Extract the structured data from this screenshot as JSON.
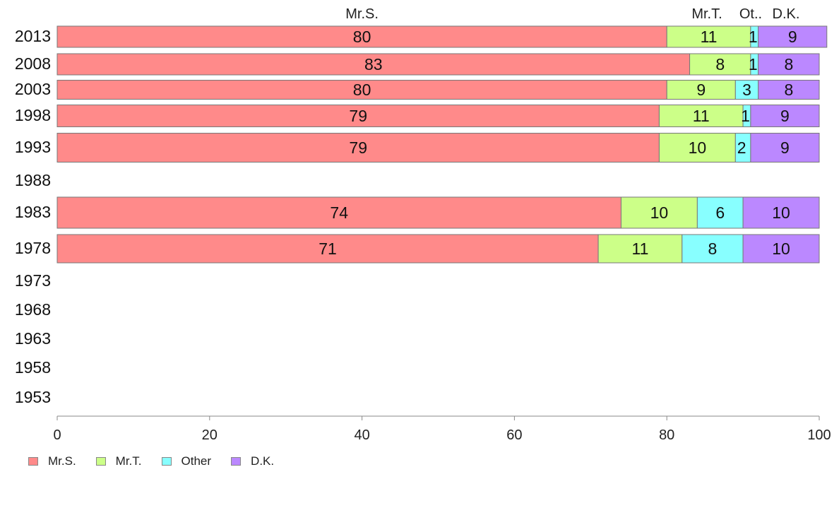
{
  "chart_data": {
    "type": "bar",
    "orientation": "horizontal",
    "stacked": true,
    "categories": [
      "2013",
      "2008",
      "2003",
      "1998",
      "1993",
      "1988",
      "1983",
      "1978",
      "1973",
      "1968",
      "1963",
      "1958",
      "1953"
    ],
    "series": [
      {
        "name": "Mr.S.",
        "header": "Mr.S.",
        "color": "#ff8a8a",
        "values": [
          80,
          83,
          80,
          79,
          79,
          null,
          74,
          71,
          null,
          null,
          null,
          null,
          null
        ],
        "labels": [
          "80",
          "83",
          "80",
          "79",
          "79",
          "",
          "74",
          "71",
          "",
          "",
          "",
          "",
          ""
        ]
      },
      {
        "name": "Mr.T.",
        "header": "Mr.T.",
        "color": "#ccff88",
        "values": [
          11,
          8,
          9,
          11,
          10,
          null,
          10,
          11,
          null,
          null,
          null,
          null,
          null
        ],
        "labels": [
          "11",
          "8",
          "9",
          "11",
          "10",
          "",
          "10",
          "11",
          "",
          "",
          "",
          "",
          ""
        ]
      },
      {
        "name": "Other",
        "header": "Ot..",
        "color": "#88ffff",
        "values": [
          1,
          1,
          3,
          1,
          2,
          null,
          6,
          8,
          null,
          null,
          null,
          null,
          null
        ],
        "labels": [
          "1",
          "1",
          "3",
          "1",
          "2",
          "",
          "6",
          "8",
          "",
          "",
          "",
          "",
          ""
        ]
      },
      {
        "name": "D.K.",
        "header": "D.K.",
        "color": "#bb88ff",
        "values": [
          9,
          8,
          8,
          9,
          9,
          null,
          10,
          10,
          null,
          null,
          null,
          null,
          null
        ],
        "labels": [
          "9",
          "8",
          "8",
          "9",
          "9",
          "",
          "10",
          "10",
          "",
          "",
          "",
          "",
          ""
        ]
      }
    ],
    "xlim": [
      0,
      100
    ],
    "x_ticks": [
      "0",
      "20",
      "40",
      "60",
      "80",
      "100"
    ],
    "title": "",
    "xlabel": "",
    "ylabel": "",
    "grid": false,
    "legend_position": "bottom-left"
  }
}
